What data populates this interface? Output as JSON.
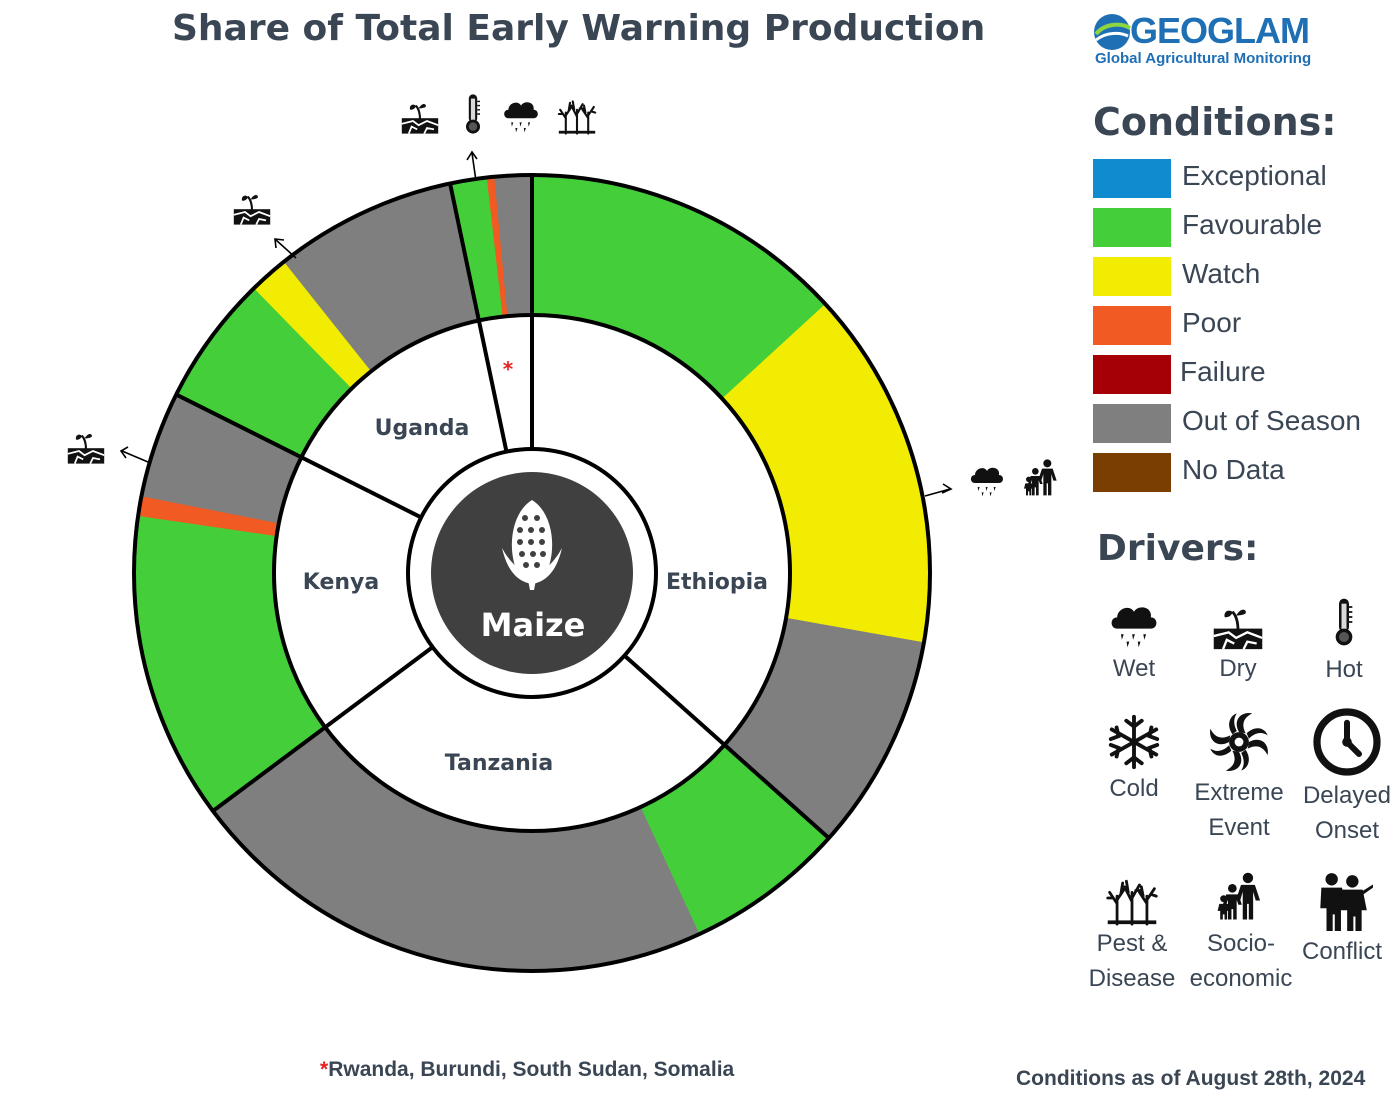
{
  "title": "Share of Total Early Warning Production",
  "logo": {
    "word": "GEOGLAM",
    "subtitle": "Global Agricultural Monitoring"
  },
  "legend": {
    "title": "Conditions:",
    "items": [
      {
        "label": "Exceptional",
        "color": "#0f8bd0"
      },
      {
        "label": "Favourable",
        "color": "#44cf3a"
      },
      {
        "label": "Watch",
        "color": "#f2ec02"
      },
      {
        "label": "Poor",
        "color": "#f15a22"
      },
      {
        "label": "Failure",
        "color": "#a50005"
      },
      {
        "label": "Out of Season",
        "color": "#7f7f7f"
      },
      {
        "label": "No Data",
        "color": "#7a3f00"
      }
    ]
  },
  "drivers": {
    "title": "Drivers:",
    "items": [
      {
        "line1": "Wet",
        "line2": "",
        "icon": "rain-cloud-icon"
      },
      {
        "line1": "Dry",
        "line2": "",
        "icon": "dry-soil-icon"
      },
      {
        "line1": "Hot",
        "line2": "",
        "icon": "thermometer-icon"
      },
      {
        "line1": "Cold",
        "line2": "",
        "icon": "snowflake-icon"
      },
      {
        "line1": "Extreme",
        "line2": "Event",
        "icon": "cyclone-icon"
      },
      {
        "line1": "Delayed",
        "line2": "Onset",
        "icon": "clock-icon"
      },
      {
        "line1": "Pest &",
        "line2": "Disease",
        "icon": "bare-trees-icon"
      },
      {
        "line1": "Socio-",
        "line2": "economic",
        "icon": "people-icon"
      },
      {
        "line1": "Conflict",
        "line2": "",
        "icon": "soldiers-icon"
      }
    ]
  },
  "center_label": "Maize",
  "footnote": {
    "star": "*",
    "text": "Rwanda, Burundi, South Sudan, Somalia"
  },
  "as_of": "Conditions as of August 28th, 2024",
  "chart_data": {
    "type": "sunburst",
    "title": "Share of Total Early Warning Production",
    "center": "Maize",
    "units": "percent of total production",
    "countries": [
      {
        "name": "Ethiopia",
        "share": 36.6,
        "segments": [
          {
            "condition": "Favourable",
            "value": 13.2
          },
          {
            "condition": "Watch",
            "value": 14.6,
            "drivers": [
              "Wet",
              "Socio-economic"
            ]
          },
          {
            "condition": "Out of Season",
            "value": 8.8
          }
        ]
      },
      {
        "name": "Tanzania",
        "share": 28.2,
        "segments": [
          {
            "condition": "Favourable",
            "value": 6.5
          },
          {
            "condition": "Out of Season",
            "value": 21.7
          }
        ]
      },
      {
        "name": "Kenya",
        "share": 17.6,
        "segments": [
          {
            "condition": "Favourable",
            "value": 12.5
          },
          {
            "condition": "Poor",
            "value": 0.8,
            "drivers": [
              "Dry"
            ]
          },
          {
            "condition": "Out of Season",
            "value": 4.3
          }
        ]
      },
      {
        "name": "Uganda",
        "share": 14.3,
        "segments": [
          {
            "condition": "Favourable",
            "value": 5.3
          },
          {
            "condition": "Watch",
            "value": 1.6,
            "drivers": [
              "Dry"
            ]
          },
          {
            "condition": "Out of Season",
            "value": 7.4
          }
        ]
      },
      {
        "name": "*",
        "label_note": "Rwanda, Burundi, South Sudan, Somalia",
        "share": 3.3,
        "segments": [
          {
            "condition": "Favourable",
            "value": 1.5
          },
          {
            "condition": "Poor",
            "value": 0.3,
            "drivers": [
              "Dry",
              "Hot",
              "Wet",
              "Pest & Disease"
            ]
          },
          {
            "condition": "Out of Season",
            "value": 1.5
          }
        ]
      }
    ]
  }
}
